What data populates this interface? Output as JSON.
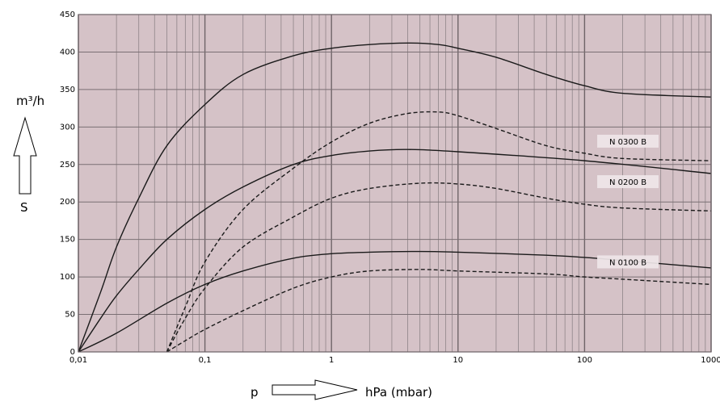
{
  "chart_data": {
    "type": "line",
    "x_scale": "log",
    "y_scale": "linear",
    "xlim": [
      0.01,
      1000
    ],
    "ylim": [
      0,
      450
    ],
    "x_ticks": [
      0.01,
      0.1,
      1,
      10,
      100,
      1000
    ],
    "x_tick_labels": [
      "0,01",
      "0,1",
      "1",
      "10",
      "100",
      "1000"
    ],
    "y_ticks": [
      0,
      50,
      100,
      150,
      200,
      250,
      300,
      350,
      400,
      450
    ],
    "y_tick_labels": [
      "0",
      "50",
      "100",
      "150",
      "200",
      "250",
      "300",
      "350",
      "400",
      "450"
    ],
    "y_unit": "m³/h",
    "y_symbol": "S",
    "x_symbol": "p",
    "x_unit": "hPa (mbar)",
    "grid": true,
    "plot_background": "#d5c2c7",
    "grid_color": "#8f8488",
    "series": [
      {
        "style": "solid",
        "points": [
          [
            0.01,
            0
          ],
          [
            0.015,
            80
          ],
          [
            0.02,
            140
          ],
          [
            0.03,
            205
          ],
          [
            0.05,
            275
          ],
          [
            0.1,
            330
          ],
          [
            0.2,
            370
          ],
          [
            0.5,
            395
          ],
          [
            1,
            405
          ],
          [
            2,
            410
          ],
          [
            4,
            412
          ],
          [
            7,
            410
          ],
          [
            10,
            405
          ],
          [
            20,
            393
          ],
          [
            50,
            370
          ],
          [
            100,
            355
          ],
          [
            200,
            345
          ],
          [
            1000,
            340
          ]
        ]
      },
      {
        "style": "dashed",
        "points": [
          [
            0.05,
            0
          ],
          [
            0.07,
            60
          ],
          [
            0.1,
            120
          ],
          [
            0.2,
            190
          ],
          [
            0.5,
            245
          ],
          [
            1,
            280
          ],
          [
            2,
            305
          ],
          [
            4,
            318
          ],
          [
            7,
            320
          ],
          [
            10,
            315
          ],
          [
            20,
            298
          ],
          [
            50,
            275
          ],
          [
            100,
            265
          ],
          [
            200,
            258
          ],
          [
            1000,
            255
          ]
        ]
      },
      {
        "style": "solid",
        "points": [
          [
            0.01,
            0
          ],
          [
            0.015,
            45
          ],
          [
            0.02,
            75
          ],
          [
            0.03,
            110
          ],
          [
            0.05,
            150
          ],
          [
            0.1,
            190
          ],
          [
            0.2,
            220
          ],
          [
            0.5,
            250
          ],
          [
            1,
            262
          ],
          [
            2,
            268
          ],
          [
            4,
            270
          ],
          [
            10,
            267
          ],
          [
            100,
            255
          ],
          [
            1000,
            238
          ]
        ]
      },
      {
        "style": "dashed",
        "points": [
          [
            0.05,
            0
          ],
          [
            0.07,
            45
          ],
          [
            0.1,
            85
          ],
          [
            0.2,
            140
          ],
          [
            0.5,
            180
          ],
          [
            1,
            205
          ],
          [
            2,
            218
          ],
          [
            5,
            225
          ],
          [
            10,
            224
          ],
          [
            20,
            218
          ],
          [
            50,
            205
          ],
          [
            100,
            197
          ],
          [
            200,
            192
          ],
          [
            1000,
            188
          ]
        ]
      },
      {
        "style": "solid",
        "points": [
          [
            0.01,
            0
          ],
          [
            0.02,
            25
          ],
          [
            0.05,
            65
          ],
          [
            0.1,
            90
          ],
          [
            0.2,
            108
          ],
          [
            0.5,
            125
          ],
          [
            1,
            131
          ],
          [
            2,
            133
          ],
          [
            5,
            134
          ],
          [
            10,
            133
          ],
          [
            50,
            129
          ],
          [
            100,
            126
          ],
          [
            200,
            122
          ],
          [
            1000,
            112
          ]
        ]
      },
      {
        "style": "dashed",
        "points": [
          [
            0.05,
            0
          ],
          [
            0.07,
            15
          ],
          [
            0.1,
            30
          ],
          [
            0.2,
            55
          ],
          [
            0.5,
            85
          ],
          [
            1,
            100
          ],
          [
            2,
            108
          ],
          [
            5,
            110
          ],
          [
            10,
            108
          ],
          [
            50,
            104
          ],
          [
            100,
            100
          ],
          [
            200,
            97
          ],
          [
            1000,
            90
          ]
        ]
      }
    ],
    "labels": [
      {
        "text": "N 0300 B",
        "x": 220,
        "y": 280
      },
      {
        "text": "N 0200 B",
        "x": 220,
        "y": 226
      },
      {
        "text": "N 0100 B",
        "x": 220,
        "y": 119
      }
    ]
  }
}
